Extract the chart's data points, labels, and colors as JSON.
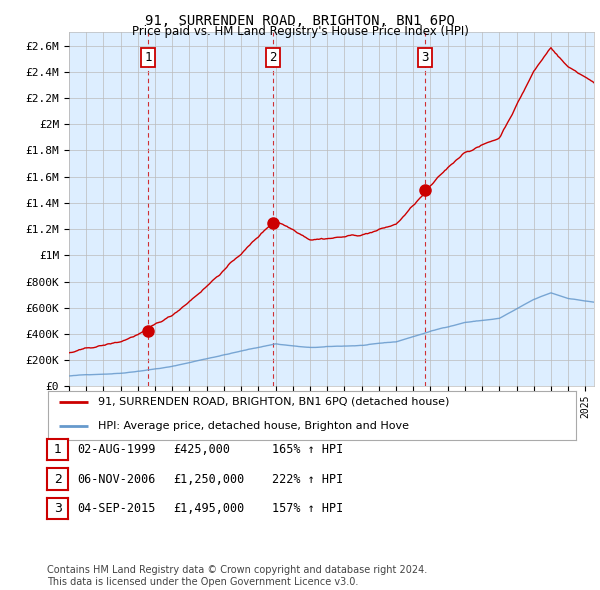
{
  "title": "91, SURRENDEN ROAD, BRIGHTON, BN1 6PQ",
  "subtitle": "Price paid vs. HM Land Registry's House Price Index (HPI)",
  "ylim": [
    0,
    2700000
  ],
  "sale_dates": [
    1999.58,
    2006.84,
    2015.67
  ],
  "sale_prices": [
    425000,
    1250000,
    1495000
  ],
  "sale_labels": [
    "1",
    "2",
    "3"
  ],
  "sale_color": "#cc0000",
  "hpi_color": "#6699cc",
  "red_line_color": "#cc0000",
  "vline_color": "#cc0000",
  "grid_color": "#bbbbbb",
  "bg_color": "#ddeeff",
  "background_color": "#ffffff",
  "legend_line1": "91, SURRENDEN ROAD, BRIGHTON, BN1 6PQ (detached house)",
  "legend_line2": "HPI: Average price, detached house, Brighton and Hove",
  "table_rows": [
    {
      "num": "1",
      "date": "02-AUG-1999",
      "price": "£425,000",
      "hpi": "165% ↑ HPI"
    },
    {
      "num": "2",
      "date": "06-NOV-2006",
      "price": "£1,250,000",
      "hpi": "222% ↑ HPI"
    },
    {
      "num": "3",
      "date": "04-SEP-2015",
      "price": "£1,495,000",
      "hpi": "157% ↑ HPI"
    }
  ],
  "footnote": "Contains HM Land Registry data © Crown copyright and database right 2024.\nThis data is licensed under the Open Government Licence v3.0.",
  "xmin": 1995.0,
  "xmax": 2025.5
}
